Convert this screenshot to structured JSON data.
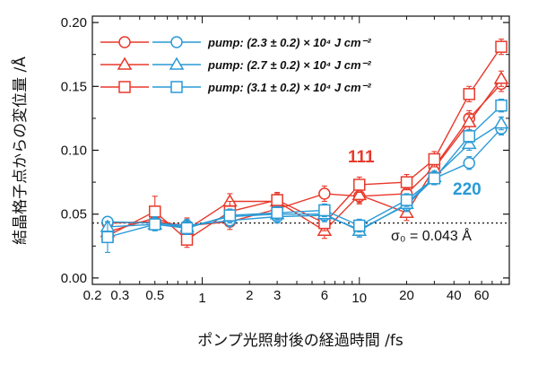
{
  "chart_data": {
    "type": "line",
    "xlabel": "ポンプ光照射後の経過時間 /fs",
    "ylabel": "結晶格子点からの変位量 /Å",
    "xscale": "log",
    "xlim": [
      0.2,
      90
    ],
    "ylim": [
      -0.005,
      0.205
    ],
    "x_ticks": [
      {
        "value": 0.2,
        "label": "0.2"
      },
      {
        "value": 0.3,
        "label": "0.3"
      },
      {
        "value": 0.5,
        "label": "0.5"
      },
      {
        "value": 1,
        "label": "1"
      },
      {
        "value": 2,
        "label": "2"
      },
      {
        "value": 3,
        "label": "3"
      },
      {
        "value": 6,
        "label": "6"
      },
      {
        "value": 10,
        "label": "10"
      },
      {
        "value": 20,
        "label": "20"
      },
      {
        "value": 40,
        "label": "40"
      },
      {
        "value": 60,
        "label": "60"
      }
    ],
    "y_ticks": [
      0.0,
      0.05,
      0.1,
      0.15,
      0.2
    ],
    "y_tick_labels": [
      "0.00",
      "0.05",
      "0.10",
      "0.15",
      "0.20"
    ],
    "legend": {
      "position": "top-left",
      "entries": [
        {
          "marker": "circle",
          "label": "pump: (2.3 ± 0.2) × 10⁴ J cm⁻²"
        },
        {
          "marker": "triangle",
          "label": "pump: (2.7 ± 0.2) × 10⁴ J cm⁻²"
        },
        {
          "marker": "square",
          "label": "pump: (3.1 ± 0.2) × 10⁴ J cm⁻²"
        }
      ]
    },
    "annotations": [
      {
        "text": "111",
        "color": "#e8392b"
      },
      {
        "text": "220",
        "color": "#2a9ad6"
      }
    ],
    "reference_line": {
      "y": 0.043,
      "label": "σ₀ = 0.043 Å",
      "style": "dotted"
    },
    "colors": {
      "red": "#e8392b",
      "blue": "#2a9ad6"
    },
    "series": [
      {
        "group": "111",
        "color": "#e8392b",
        "marker": "circle",
        "x": [
          0.25,
          0.5,
          0.8,
          1.5,
          3,
          6,
          10,
          20,
          30,
          50,
          80
        ],
        "y": [
          0.043,
          0.044,
          0.041,
          0.044,
          0.054,
          0.066,
          0.064,
          0.066,
          0.087,
          0.125,
          0.152
        ],
        "err": [
          0.005,
          0.006,
          0.006,
          0.006,
          0.006,
          0.006,
          0.006,
          0.006,
          0.006,
          0.006,
          0.006
        ]
      },
      {
        "group": "111",
        "color": "#e8392b",
        "marker": "triangle",
        "x": [
          0.25,
          0.5,
          0.8,
          1.5,
          3,
          6,
          10,
          20,
          30,
          50,
          80
        ],
        "y": [
          0.036,
          0.047,
          0.038,
          0.06,
          0.06,
          0.037,
          0.065,
          0.051,
          0.086,
          0.122,
          0.156
        ],
        "err": [
          0.005,
          0.006,
          0.006,
          0.006,
          0.006,
          0.006,
          0.006,
          0.006,
          0.006,
          0.006,
          0.006
        ]
      },
      {
        "group": "111",
        "color": "#e8392b",
        "marker": "square",
        "x": [
          0.25,
          0.5,
          0.8,
          1.5,
          3,
          6,
          10,
          20,
          30,
          50,
          80
        ],
        "y": [
          0.033,
          0.052,
          0.03,
          0.052,
          0.061,
          0.043,
          0.073,
          0.075,
          0.093,
          0.144,
          0.181
        ],
        "err": [
          0.005,
          0.012,
          0.006,
          0.008,
          0.006,
          0.006,
          0.006,
          0.006,
          0.006,
          0.006,
          0.006
        ]
      },
      {
        "group": "220",
        "color": "#2a9ad6",
        "marker": "circle",
        "x": [
          0.25,
          0.5,
          0.8,
          1.5,
          3,
          6,
          10,
          20,
          30,
          50,
          80
        ],
        "y": [
          0.044,
          0.043,
          0.041,
          0.045,
          0.048,
          0.049,
          0.038,
          0.057,
          0.078,
          0.09,
          0.117
        ],
        "err": [
          0.004,
          0.005,
          0.005,
          0.005,
          0.005,
          0.005,
          0.005,
          0.005,
          0.005,
          0.005,
          0.005
        ]
      },
      {
        "group": "220",
        "color": "#2a9ad6",
        "marker": "triangle",
        "x": [
          0.25,
          0.5,
          0.8,
          1.5,
          3,
          6,
          10,
          20,
          30,
          50,
          80
        ],
        "y": [
          0.04,
          0.042,
          0.04,
          0.048,
          0.05,
          0.05,
          0.037,
          0.058,
          0.079,
          0.105,
          0.121
        ],
        "err": [
          0.004,
          0.005,
          0.005,
          0.005,
          0.005,
          0.005,
          0.005,
          0.005,
          0.005,
          0.005,
          0.005
        ]
      },
      {
        "group": "220",
        "color": "#2a9ad6",
        "marker": "square",
        "x": [
          0.25,
          0.5,
          0.8,
          1.5,
          3,
          6,
          10,
          20,
          30,
          50,
          80
        ],
        "y": [
          0.032,
          0.042,
          0.039,
          0.049,
          0.051,
          0.053,
          0.041,
          0.061,
          0.078,
          0.111,
          0.135
        ],
        "err": [
          0.012,
          0.005,
          0.005,
          0.005,
          0.005,
          0.005,
          0.005,
          0.005,
          0.005,
          0.005,
          0.005
        ]
      }
    ]
  }
}
